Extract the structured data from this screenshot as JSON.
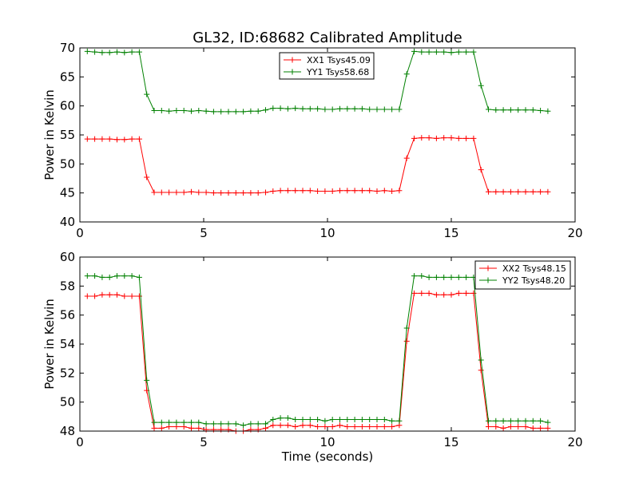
{
  "figure": {
    "title": "GL32, ID:68682 Calibrated Amplitude",
    "xlabel": "Time (seconds)"
  },
  "colors": {
    "red": "#ff0000",
    "green": "#008000"
  },
  "chart_data": [
    {
      "type": "line",
      "title": "GL32, ID:68682 Calibrated Amplitude",
      "xlabel": "",
      "ylabel": "Power in Kelvin",
      "xlim": [
        0,
        20
      ],
      "ylim": [
        40,
        70
      ],
      "xticks": [
        0,
        5,
        10,
        15,
        20
      ],
      "yticks": [
        40,
        45,
        50,
        55,
        60,
        65,
        70
      ],
      "legend_position": "top-center",
      "marker": "+",
      "series": [
        {
          "name": "XX1 Tsys45.09",
          "color": "#ff0000",
          "x": [
            0.3,
            0.6,
            0.9,
            1.2,
            1.5,
            1.8,
            2.1,
            2.4,
            2.7,
            3.0,
            3.3,
            3.6,
            3.9,
            4.2,
            4.5,
            4.8,
            5.1,
            5.4,
            5.7,
            6.0,
            6.3,
            6.6,
            6.9,
            7.2,
            7.5,
            7.8,
            8.1,
            8.4,
            8.7,
            9.0,
            9.3,
            9.6,
            9.9,
            10.2,
            10.5,
            10.8,
            11.1,
            11.4,
            11.7,
            12.0,
            12.3,
            12.6,
            12.9,
            13.2,
            13.5,
            13.8,
            14.1,
            14.4,
            14.7,
            15.0,
            15.3,
            15.6,
            15.9,
            16.2,
            16.5,
            16.8,
            17.1,
            17.4,
            17.7,
            18.0,
            18.3,
            18.6,
            18.9
          ],
          "y": [
            54.3,
            54.3,
            54.3,
            54.3,
            54.2,
            54.2,
            54.3,
            54.3,
            47.7,
            45.1,
            45.1,
            45.1,
            45.1,
            45.1,
            45.2,
            45.1,
            45.1,
            45.0,
            45.0,
            45.0,
            45.0,
            45.0,
            45.0,
            45.0,
            45.1,
            45.3,
            45.4,
            45.4,
            45.4,
            45.4,
            45.4,
            45.3,
            45.3,
            45.3,
            45.4,
            45.4,
            45.4,
            45.4,
            45.4,
            45.3,
            45.4,
            45.3,
            45.4,
            51.0,
            54.4,
            54.5,
            54.5,
            54.4,
            54.5,
            54.5,
            54.4,
            54.4,
            54.4,
            49.0,
            45.2,
            45.2,
            45.2,
            45.2,
            45.2,
            45.2,
            45.2,
            45.2,
            45.2
          ]
        },
        {
          "name": "YY1 Tsys58.68",
          "color": "#008000",
          "x": [
            0.3,
            0.6,
            0.9,
            1.2,
            1.5,
            1.8,
            2.1,
            2.4,
            2.7,
            3.0,
            3.3,
            3.6,
            3.9,
            4.2,
            4.5,
            4.8,
            5.1,
            5.4,
            5.7,
            6.0,
            6.3,
            6.6,
            6.9,
            7.2,
            7.5,
            7.8,
            8.1,
            8.4,
            8.7,
            9.0,
            9.3,
            9.6,
            9.9,
            10.2,
            10.5,
            10.8,
            11.1,
            11.4,
            11.7,
            12.0,
            12.3,
            12.6,
            12.9,
            13.2,
            13.5,
            13.8,
            14.1,
            14.4,
            14.7,
            15.0,
            15.3,
            15.6,
            15.9,
            16.2,
            16.5,
            16.8,
            17.1,
            17.4,
            17.7,
            18.0,
            18.3,
            18.6,
            18.9
          ],
          "y": [
            69.4,
            69.3,
            69.2,
            69.2,
            69.3,
            69.2,
            69.3,
            69.3,
            62.0,
            59.2,
            59.2,
            59.1,
            59.2,
            59.2,
            59.1,
            59.2,
            59.1,
            59.0,
            59.0,
            59.0,
            59.0,
            59.0,
            59.1,
            59.1,
            59.3,
            59.6,
            59.6,
            59.5,
            59.6,
            59.5,
            59.5,
            59.5,
            59.4,
            59.4,
            59.5,
            59.5,
            59.5,
            59.5,
            59.4,
            59.4,
            59.4,
            59.4,
            59.4,
            65.5,
            69.4,
            69.3,
            69.3,
            69.3,
            69.3,
            69.2,
            69.3,
            69.3,
            69.3,
            63.5,
            59.4,
            59.3,
            59.3,
            59.3,
            59.3,
            59.3,
            59.3,
            59.2,
            59.1
          ]
        }
      ]
    },
    {
      "type": "line",
      "xlabel": "Time (seconds)",
      "ylabel": "Power in Kelvin",
      "xlim": [
        0,
        20
      ],
      "ylim": [
        48,
        60
      ],
      "xticks": [
        0,
        5,
        10,
        15,
        20
      ],
      "yticks": [
        48,
        50,
        52,
        54,
        56,
        58,
        60
      ],
      "legend_position": "top-right",
      "marker": "+",
      "series": [
        {
          "name": "XX2 Tsys48.15",
          "color": "#ff0000",
          "x": [
            0.3,
            0.6,
            0.9,
            1.2,
            1.5,
            1.8,
            2.1,
            2.4,
            2.7,
            3.0,
            3.3,
            3.6,
            3.9,
            4.2,
            4.5,
            4.8,
            5.1,
            5.4,
            5.7,
            6.0,
            6.3,
            6.6,
            6.9,
            7.2,
            7.5,
            7.8,
            8.1,
            8.4,
            8.7,
            9.0,
            9.3,
            9.6,
            9.9,
            10.2,
            10.5,
            10.8,
            11.1,
            11.4,
            11.7,
            12.0,
            12.3,
            12.6,
            12.9,
            13.2,
            13.5,
            13.8,
            14.1,
            14.4,
            14.7,
            15.0,
            15.3,
            15.6,
            15.9,
            16.2,
            16.5,
            16.8,
            17.1,
            17.4,
            17.7,
            18.0,
            18.3,
            18.6,
            18.9
          ],
          "y": [
            57.3,
            57.3,
            57.4,
            57.4,
            57.4,
            57.3,
            57.3,
            57.3,
            50.8,
            48.2,
            48.2,
            48.3,
            48.3,
            48.3,
            48.2,
            48.2,
            48.1,
            48.1,
            48.1,
            48.1,
            48.0,
            48.0,
            48.1,
            48.1,
            48.2,
            48.4,
            48.4,
            48.4,
            48.3,
            48.4,
            48.4,
            48.3,
            48.3,
            48.3,
            48.4,
            48.3,
            48.3,
            48.3,
            48.3,
            48.3,
            48.3,
            48.3,
            48.4,
            54.2,
            57.5,
            57.5,
            57.5,
            57.4,
            57.4,
            57.4,
            57.5,
            57.5,
            57.5,
            52.2,
            48.3,
            48.3,
            48.2,
            48.3,
            48.3,
            48.3,
            48.2,
            48.2,
            48.2
          ]
        },
        {
          "name": "YY2 Tsys48.20",
          "color": "#008000",
          "x": [
            0.3,
            0.6,
            0.9,
            1.2,
            1.5,
            1.8,
            2.1,
            2.4,
            2.7,
            3.0,
            3.3,
            3.6,
            3.9,
            4.2,
            4.5,
            4.8,
            5.1,
            5.4,
            5.7,
            6.0,
            6.3,
            6.6,
            6.9,
            7.2,
            7.5,
            7.8,
            8.1,
            8.4,
            8.7,
            9.0,
            9.3,
            9.6,
            9.9,
            10.2,
            10.5,
            10.8,
            11.1,
            11.4,
            11.7,
            12.0,
            12.3,
            12.6,
            12.9,
            13.2,
            13.5,
            13.8,
            14.1,
            14.4,
            14.7,
            15.0,
            15.3,
            15.6,
            15.9,
            16.2,
            16.5,
            16.8,
            17.1,
            17.4,
            17.7,
            18.0,
            18.3,
            18.6,
            18.9
          ],
          "y": [
            58.7,
            58.7,
            58.6,
            58.6,
            58.7,
            58.7,
            58.7,
            58.6,
            51.5,
            48.6,
            48.6,
            48.6,
            48.6,
            48.6,
            48.6,
            48.6,
            48.5,
            48.5,
            48.5,
            48.5,
            48.5,
            48.4,
            48.5,
            48.5,
            48.5,
            48.8,
            48.9,
            48.9,
            48.8,
            48.8,
            48.8,
            48.8,
            48.7,
            48.8,
            48.8,
            48.8,
            48.8,
            48.8,
            48.8,
            48.8,
            48.8,
            48.7,
            48.7,
            55.1,
            58.7,
            58.7,
            58.6,
            58.6,
            58.6,
            58.6,
            58.6,
            58.6,
            58.6,
            52.9,
            48.7,
            48.7,
            48.7,
            48.7,
            48.7,
            48.7,
            48.7,
            48.7,
            48.6
          ]
        }
      ]
    }
  ]
}
